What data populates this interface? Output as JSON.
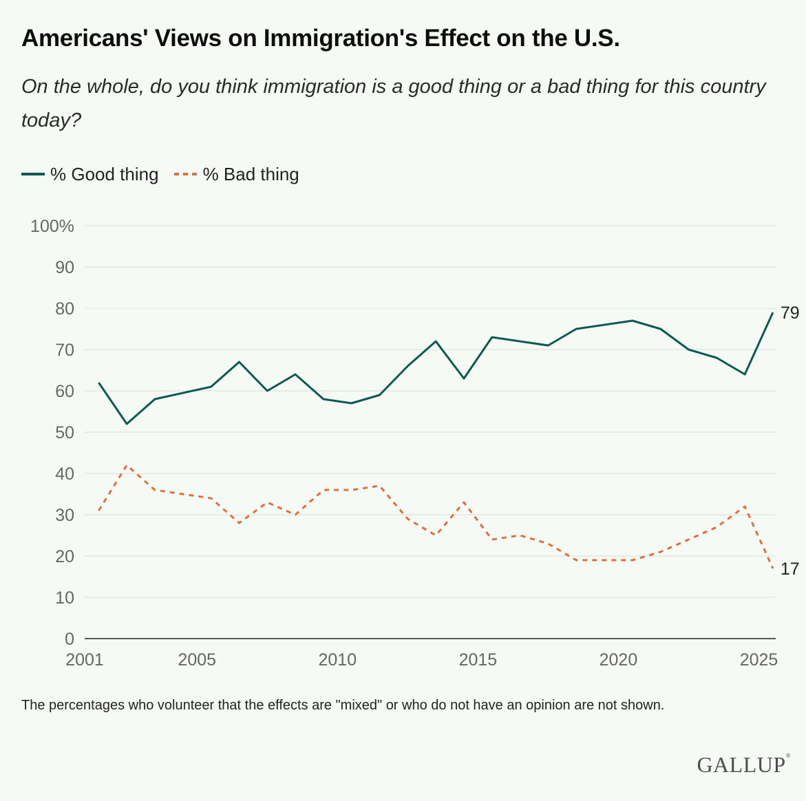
{
  "title": "Americans' Views on Immigration's Effect on the U.S.",
  "subtitle": "On the whole, do you think immigration is a good thing or a bad thing for this country today?",
  "note": "The percentages who volunteer that the effects are \"mixed\" or who do not have an opinion are not shown.",
  "logo": "GALLUP",
  "colors": {
    "good": "#0b5a52",
    "bad": "#e0703b",
    "grid": "#d9dcd7",
    "background": "#f6faf4"
  },
  "chart_data": {
    "type": "line",
    "title": "Americans' Views on Immigration's Effect on the U.S.",
    "xlim": [
      2001,
      2025.6
    ],
    "ylim": [
      0,
      100
    ],
    "y_ticks": [
      0,
      10,
      20,
      30,
      40,
      50,
      60,
      70,
      80,
      90,
      100
    ],
    "y_tick_labels": [
      "0",
      "10",
      "20",
      "30",
      "40",
      "50",
      "60",
      "70",
      "80",
      "90",
      "100%"
    ],
    "x_ticks": [
      2001,
      2005,
      2010,
      2015,
      2020,
      2025
    ],
    "x_tick_labels": [
      "2001",
      "2005",
      "2010",
      "2015",
      "2020",
      "2025"
    ],
    "grid": true,
    "legend_position": "top-left",
    "series": [
      {
        "name": "% Good thing",
        "style": "solid",
        "points": [
          [
            2001.5,
            62
          ],
          [
            2002.5,
            52
          ],
          [
            2003.5,
            58
          ],
          [
            2005.5,
            61
          ],
          [
            2006.5,
            67
          ],
          [
            2007.5,
            60
          ],
          [
            2008.5,
            64
          ],
          [
            2009.5,
            58
          ],
          [
            2010.5,
            57
          ],
          [
            2011.5,
            59
          ],
          [
            2012.5,
            66
          ],
          [
            2013.5,
            72
          ],
          [
            2014.5,
            63
          ],
          [
            2015.5,
            73
          ],
          [
            2017.5,
            71
          ],
          [
            2018.5,
            75
          ],
          [
            2020.5,
            77
          ],
          [
            2021.5,
            75
          ],
          [
            2022.5,
            70
          ],
          [
            2023.5,
            68
          ],
          [
            2024.5,
            64
          ],
          [
            2025.5,
            79
          ]
        ],
        "end_label": "79"
      },
      {
        "name": "% Bad thing",
        "style": "dashed",
        "points": [
          [
            2001.5,
            31
          ],
          [
            2002.5,
            42
          ],
          [
            2003.5,
            36
          ],
          [
            2005.5,
            34
          ],
          [
            2006.5,
            28
          ],
          [
            2007.5,
            33
          ],
          [
            2008.5,
            30
          ],
          [
            2009.5,
            36
          ],
          [
            2010.5,
            36
          ],
          [
            2011.5,
            37
          ],
          [
            2012.5,
            29
          ],
          [
            2013.5,
            25
          ],
          [
            2014.5,
            33
          ],
          [
            2015.5,
            24
          ],
          [
            2016.5,
            25
          ],
          [
            2017.5,
            23
          ],
          [
            2018.5,
            19
          ],
          [
            2020.5,
            19
          ],
          [
            2021.5,
            21
          ],
          [
            2022.5,
            24
          ],
          [
            2023.5,
            27
          ],
          [
            2024.5,
            32
          ],
          [
            2025.5,
            17
          ]
        ],
        "end_label": "17"
      }
    ]
  }
}
